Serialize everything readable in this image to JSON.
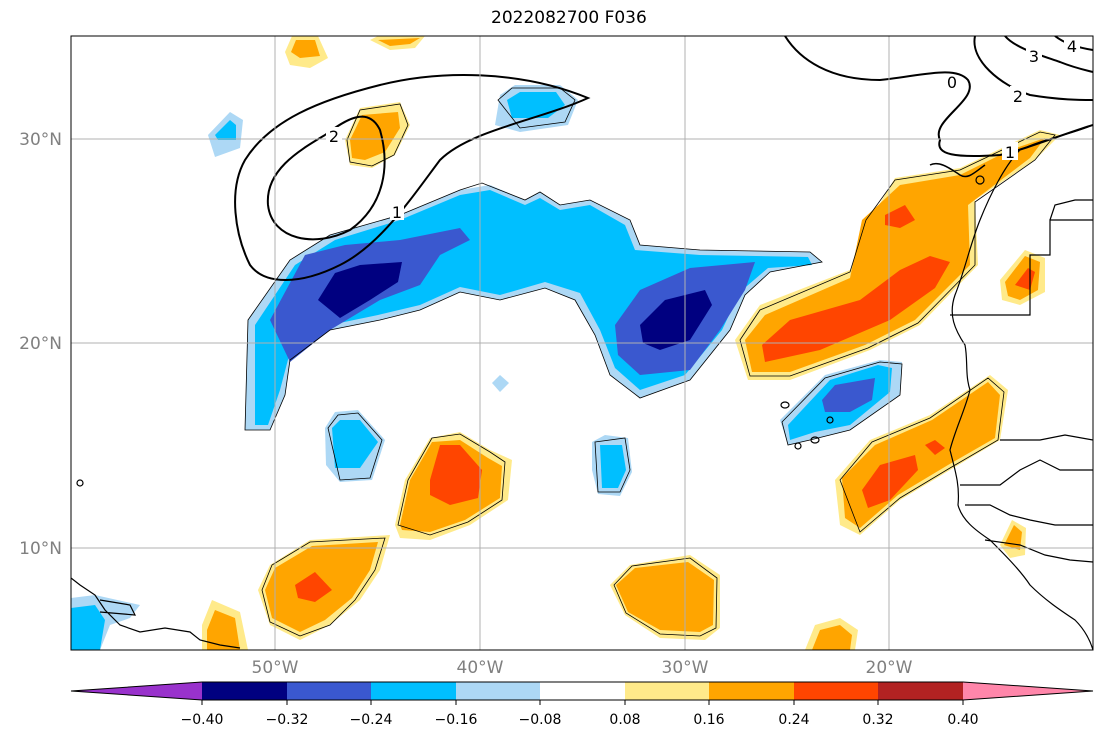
{
  "title": "2022082700 F036",
  "map": {
    "lon_range": [
      -60,
      -10
    ],
    "lat_range": [
      5,
      35
    ],
    "gridlines": true,
    "lon_ticks": [
      {
        "value": -50,
        "label": "50°W"
      },
      {
        "value": -40,
        "label": "40°W"
      },
      {
        "value": -30,
        "label": "30°W"
      },
      {
        "value": -20,
        "label": "20°W"
      }
    ],
    "lat_ticks": [
      {
        "value": 30,
        "label": "30°N"
      },
      {
        "value": 20,
        "label": "20°N"
      },
      {
        "value": 10,
        "label": "10°N"
      }
    ],
    "contour_labels": [
      "1",
      "2",
      "2",
      "3",
      "4",
      "1",
      "0"
    ]
  },
  "colorbar": {
    "colors": [
      "#9932cc",
      "#000080",
      "#3a58cf",
      "#00bfff",
      "#add8f5",
      "#ffffff",
      "#ffea8a",
      "#ffa500",
      "#ff4500",
      "#b22222",
      "#ff86aa"
    ],
    "tick_labels": [
      "−0.40",
      "−0.32",
      "−0.24",
      "−0.16",
      "−0.08",
      "0.08",
      "0.16",
      "0.24",
      "0.32",
      "0.40"
    ]
  }
}
